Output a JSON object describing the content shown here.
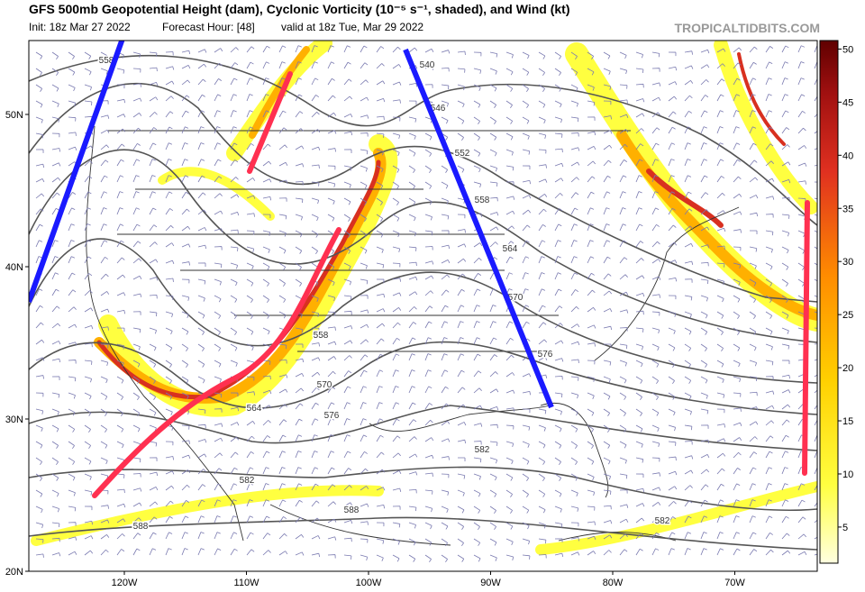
{
  "header": {
    "title": "GFS 500mb Geopotential Height (dam), Cyclonic Vorticity (10⁻⁵ s⁻¹, shaded), and Wind (kt)",
    "init": "Init: 18z Mar 27 2022",
    "forecast_hour": "Forecast Hour: [48]",
    "valid": "valid at 18z Tue, Mar 29 2022",
    "watermark": "TROPICALTIDBITS.COM"
  },
  "map": {
    "lat_ticks": [
      {
        "value": 50,
        "label": "50N"
      },
      {
        "value": 40,
        "label": "40N"
      },
      {
        "value": 30,
        "label": "30N"
      },
      {
        "value": 20,
        "label": "20N"
      }
    ],
    "lon_ticks": [
      {
        "value": -120,
        "label": "120W"
      },
      {
        "value": -110,
        "label": "110W"
      },
      {
        "value": -100,
        "label": "100W"
      },
      {
        "value": -90,
        "label": "90W"
      },
      {
        "value": -80,
        "label": "80W"
      },
      {
        "value": -70,
        "label": "70W"
      }
    ],
    "contour_labels": [
      "558",
      "540",
      "546",
      "552",
      "558",
      "564",
      "570",
      "576",
      "558",
      "570",
      "564",
      "576",
      "582",
      "582",
      "588",
      "588",
      "582"
    ]
  },
  "colorbar": {
    "lim": [
      1.6,
      50.8
    ],
    "ticks": [
      5,
      10,
      15,
      20,
      25,
      30,
      35,
      40,
      45,
      50
    ]
  }
}
